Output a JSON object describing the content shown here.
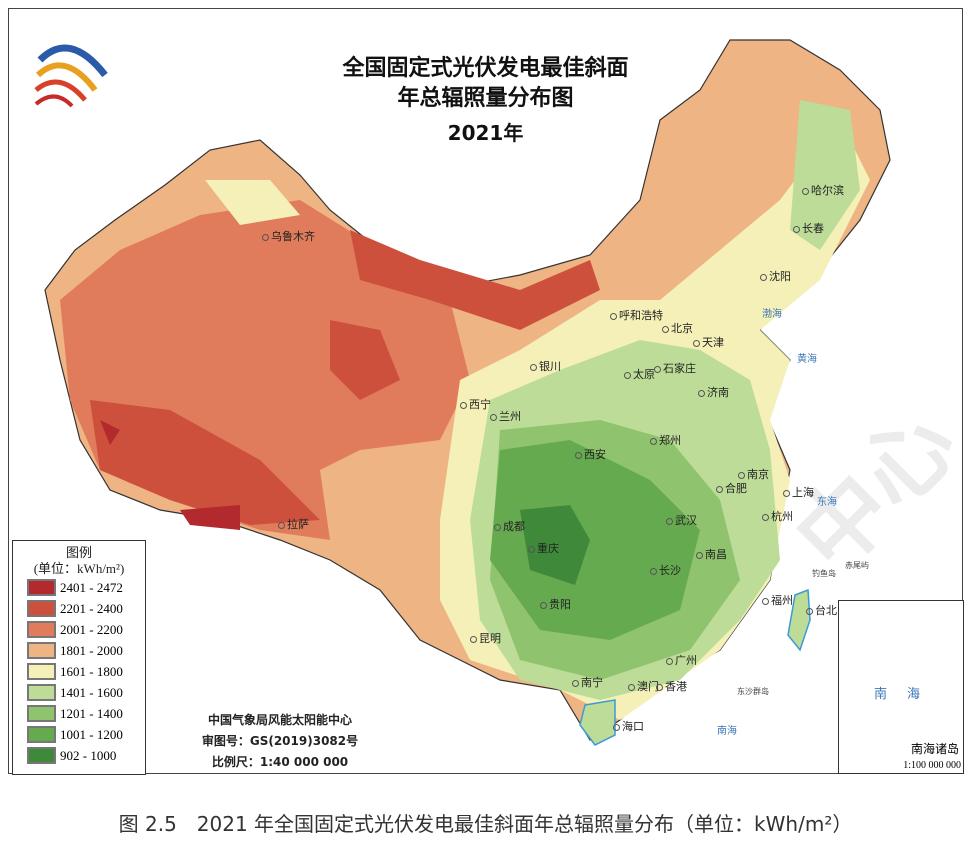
{
  "title": {
    "line1": "全国固定式光伏发电最佳斜面",
    "line2": "年总辐照量分布图",
    "year": "2021年"
  },
  "legend": {
    "heading": "图例",
    "unit": "(单位：kWh/m²)",
    "classes": [
      {
        "range": "2401 - 2472",
        "color": "#b22a2e"
      },
      {
        "range": "2201 - 2400",
        "color": "#cc503b"
      },
      {
        "range": "2001 - 2200",
        "color": "#e07c5c"
      },
      {
        "range": "1801 - 2000",
        "color": "#efb483"
      },
      {
        "range": "1601 - 1800",
        "color": "#f5f0b8"
      },
      {
        "range": "1401 - 1600",
        "color": "#bcdc98"
      },
      {
        "range": "1201 - 1400",
        "color": "#8fc36e"
      },
      {
        "range": "1001 - 1200",
        "color": "#66aa50"
      },
      {
        "range": "902 - 1000",
        "color": "#3f8a3a"
      }
    ]
  },
  "credits": {
    "org": "中国气象局风能太阳能中心",
    "approval": "审图号：GS(2019)3082号",
    "scale": "比例尺：1:40 000 000"
  },
  "cities": [
    {
      "name": "乌鲁木齐"
    },
    {
      "name": "拉萨"
    },
    {
      "name": "西宁"
    },
    {
      "name": "兰州"
    },
    {
      "name": "银川"
    },
    {
      "name": "呼和浩特"
    },
    {
      "name": "北京"
    },
    {
      "name": "天津"
    },
    {
      "name": "太原"
    },
    {
      "name": "石家庄"
    },
    {
      "name": "济南"
    },
    {
      "name": "沈阳"
    },
    {
      "name": "长春"
    },
    {
      "name": "哈尔滨"
    },
    {
      "name": "郑州"
    },
    {
      "name": "西安"
    },
    {
      "name": "成都"
    },
    {
      "name": "重庆"
    },
    {
      "name": "贵阳"
    },
    {
      "name": "昆明"
    },
    {
      "name": "南宁"
    },
    {
      "name": "海口"
    },
    {
      "name": "长沙"
    },
    {
      "name": "武汉"
    },
    {
      "name": "南昌"
    },
    {
      "name": "合肥"
    },
    {
      "name": "南京"
    },
    {
      "name": "上海"
    },
    {
      "name": "杭州"
    },
    {
      "name": "福州"
    },
    {
      "name": "台北"
    },
    {
      "name": "广州"
    },
    {
      "name": "澳门"
    },
    {
      "name": "香港"
    }
  ],
  "seas": {
    "bohai": "渤海",
    "huanghai": "黄海",
    "donghai": "东海",
    "nanhai": "南海",
    "diaoyu": "钓鱼岛",
    "chiwei": "赤尾屿",
    "dongsha": "东沙群岛"
  },
  "inset": {
    "sea": "南海",
    "label": "南海诸岛",
    "scale": "1:100 000 000"
  },
  "caption": "图 2.5　2021 年全国固定式光伏发电最佳斜面年总辐照量分布（单位：kWh/m²）"
}
